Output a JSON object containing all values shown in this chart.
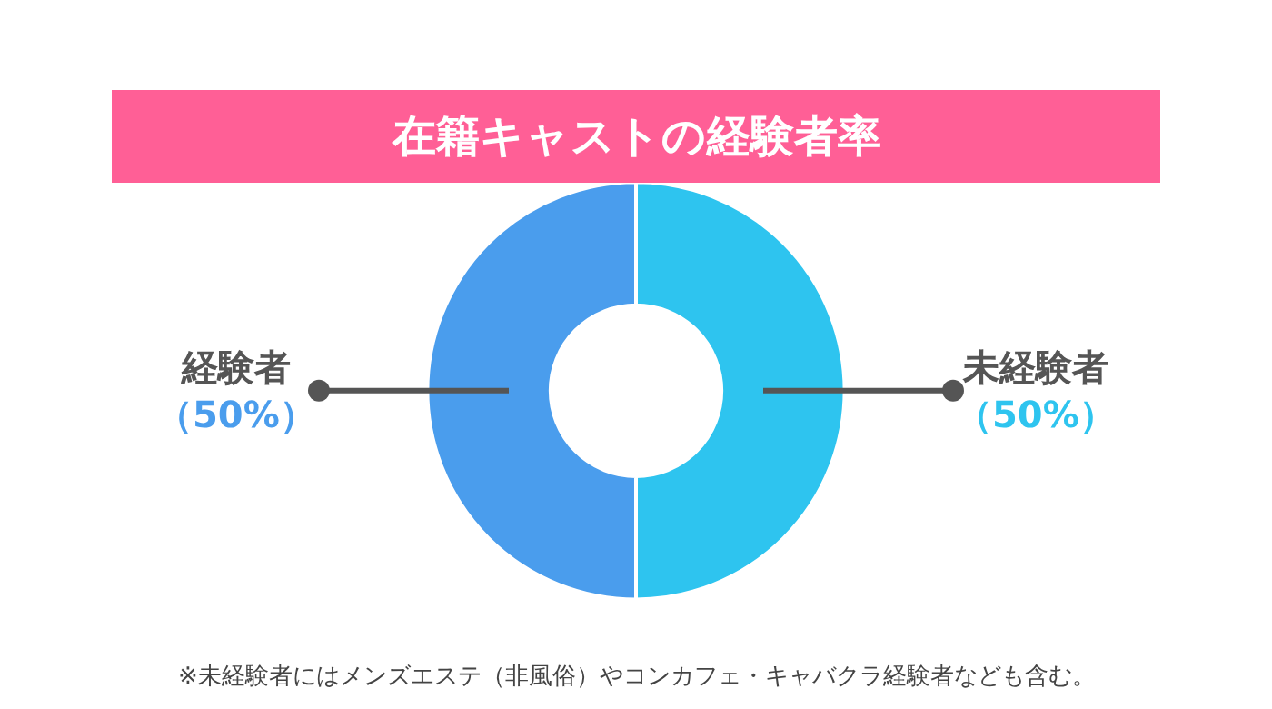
{
  "chart_data": {
    "type": "donut",
    "title": "在籍キャストの経験者率",
    "categories": [
      "未経験者",
      "経験者"
    ],
    "values": [
      50,
      50
    ],
    "value_labels": [
      "（50%）",
      "（50%）"
    ],
    "colors": [
      "#2ec4ef",
      "#4a9ded"
    ],
    "legend": false,
    "annotations": [
      "※未経験者にはメンズエステ（非風俗）やコンカフェ・キャバクラ経験者なども含む。"
    ]
  }
}
